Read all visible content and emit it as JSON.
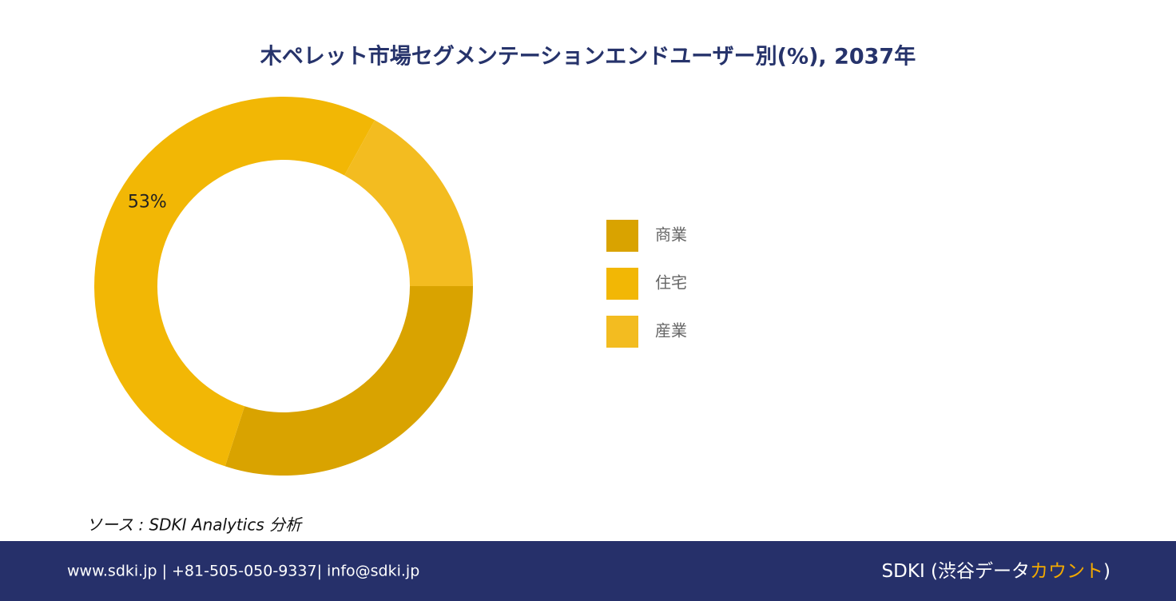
{
  "chart_data": {
    "type": "donut",
    "title": "木ペレット市場セグメンテーションエンドユーザー別(%), 2037年",
    "categories": [
      "商業",
      "住宅",
      "産業"
    ],
    "values": [
      30,
      53,
      17
    ],
    "value_labels": [
      null,
      "53%",
      null
    ],
    "colors": [
      "#d9a300",
      "#f2b705",
      "#f3bc20"
    ],
    "legend": "right"
  },
  "source": "ソース : SDKI Analytics 分析",
  "footer": {
    "contact": "www.sdki.jp | +81-505-050-9337| info@sdki.jp",
    "brand": "SDKI (渋谷データ",
    "brand_highlight": "カウント",
    "brand_end": ")"
  }
}
